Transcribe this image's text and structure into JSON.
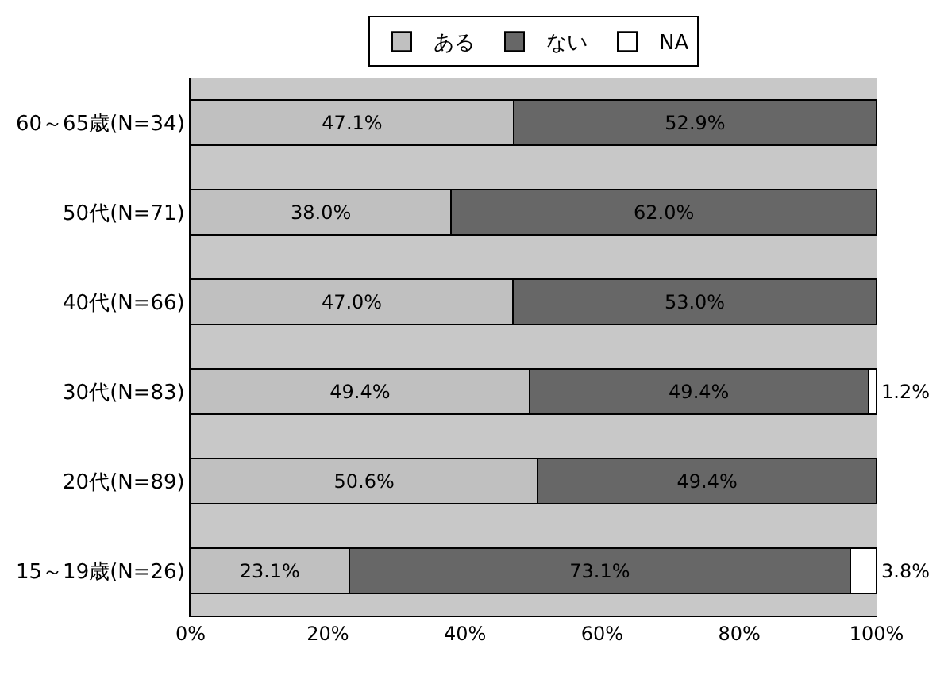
{
  "chart_data": {
    "type": "bar",
    "orientation": "horizontal",
    "stacked": true,
    "categories": [
      "60～65歳(N=34)",
      "50代(N=71)",
      "40代(N=66)",
      "30代(N=83)",
      "20代(N=89)",
      "15～19歳(N=26)"
    ],
    "series": [
      {
        "name": "ある",
        "color": "#c0c0c0",
        "values": [
          47.1,
          38.0,
          47.0,
          49.4,
          50.6,
          23.1
        ],
        "value_labels": [
          "47.1%",
          "38.0%",
          "47.0%",
          "49.4%",
          "50.6%",
          "23.1%"
        ]
      },
      {
        "name": "ない",
        "color": "#676767",
        "values": [
          52.9,
          62.0,
          53.0,
          49.4,
          49.4,
          73.1
        ],
        "value_labels": [
          "52.9%",
          "62.0%",
          "53.0%",
          "49.4%",
          "49.4%",
          "73.1%"
        ]
      },
      {
        "name": "NA",
        "color": "#ffffff",
        "values": [
          null,
          null,
          null,
          1.2,
          null,
          3.8
        ],
        "value_labels": [
          null,
          null,
          null,
          "1.2%",
          null,
          "3.8%"
        ]
      }
    ],
    "xlim": [
      0,
      100
    ],
    "xticks": [
      {
        "value": 0,
        "label": "0%"
      },
      {
        "value": 20,
        "label": "20%"
      },
      {
        "value": 40,
        "label": "40%"
      },
      {
        "value": 60,
        "label": "60%"
      },
      {
        "value": 80,
        "label": "80%"
      },
      {
        "value": 100,
        "label": "100%"
      }
    ],
    "grid": false,
    "legend": "top"
  }
}
